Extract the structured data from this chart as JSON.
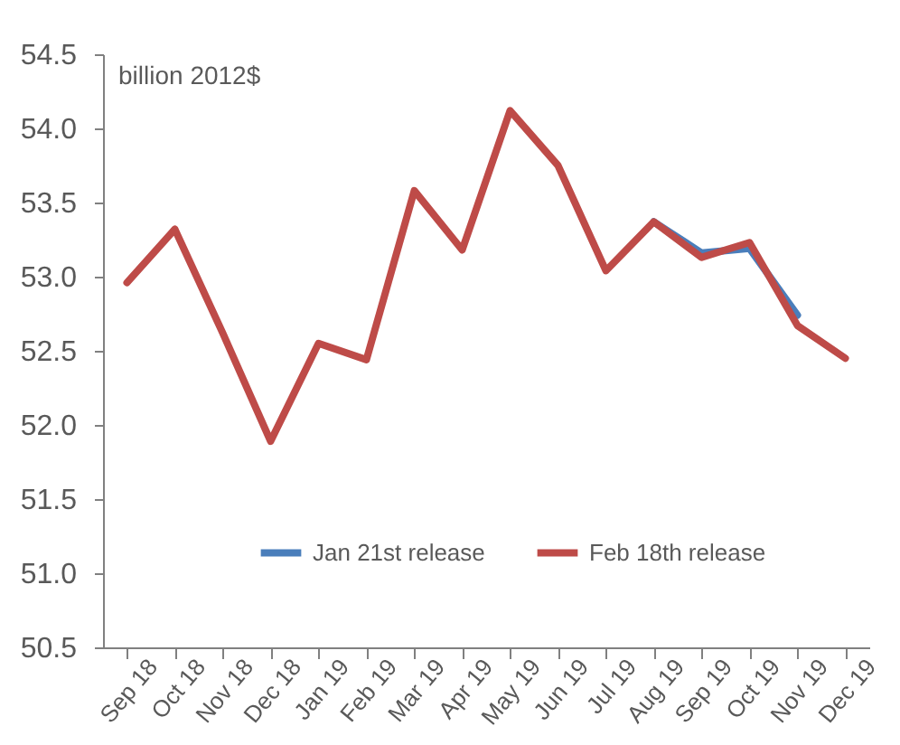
{
  "chart_data": {
    "type": "line",
    "ylabel": "billion 2012$",
    "categories": [
      "Sep 18",
      "Oct 18",
      "Nov 18",
      "Dec 18",
      "Jan 19",
      "Feb 19",
      "Mar 19",
      "Apr 19",
      "May 19",
      "Jun 19",
      "Jul 19",
      "Aug 19",
      "Sep 19",
      "Oct 19",
      "Nov 19",
      "Dec 19"
    ],
    "series": [
      {
        "name": "Jan 21st release",
        "color": "#4a7ebb",
        "values": [
          null,
          null,
          null,
          null,
          null,
          null,
          null,
          null,
          null,
          null,
          null,
          53.37,
          53.16,
          53.19,
          52.74,
          null
        ]
      },
      {
        "name": "Feb 18th release",
        "color": "#be4b48",
        "values": [
          52.96,
          53.32,
          52.62,
          51.89,
          52.55,
          52.44,
          53.58,
          53.18,
          54.12,
          53.75,
          53.04,
          53.37,
          53.13,
          53.23,
          52.67,
          52.45
        ]
      }
    ],
    "ylim": [
      50.5,
      54.5
    ],
    "yticks": [
      {
        "value": 50.5,
        "label": "50.5"
      },
      {
        "value": 51,
        "label": "51.0"
      },
      {
        "value": 51.5,
        "label": "51.5"
      },
      {
        "value": 52,
        "label": "52.0"
      },
      {
        "value": 52.5,
        "label": "52.5"
      },
      {
        "value": 53,
        "label": "53.0"
      },
      {
        "value": 53.5,
        "label": "53.5"
      },
      {
        "value": 54,
        "label": "54.0"
      },
      {
        "value": 54.5,
        "label": "54.5"
      }
    ],
    "grid": false,
    "legend": "bottom"
  }
}
